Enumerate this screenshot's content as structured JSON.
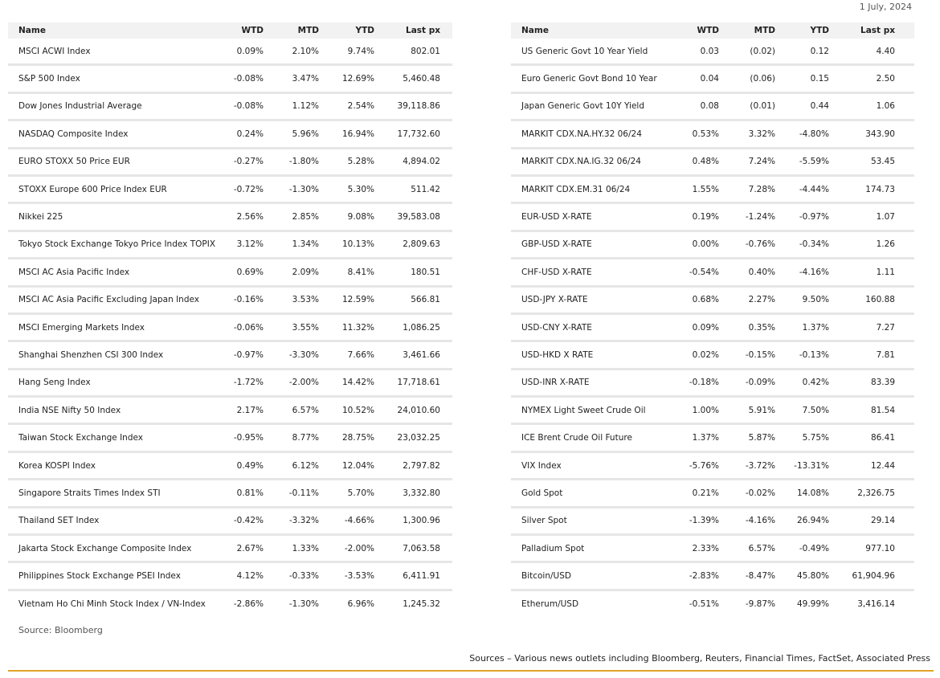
{
  "date": "1 July, 2024",
  "tables": [
    {
      "columns": [
        "Name",
        "WTD",
        "MTD",
        "YTD",
        "Last px"
      ],
      "rows": [
        [
          "MSCI ACWI Index",
          "0.09%",
          "2.10%",
          "9.74%",
          "802.01"
        ],
        [
          "S&P 500 Index",
          "-0.08%",
          "3.47%",
          "12.69%",
          "5,460.48"
        ],
        [
          "Dow Jones Industrial Average",
          "-0.08%",
          "1.12%",
          "2.54%",
          "39,118.86"
        ],
        [
          "NASDAQ Composite Index",
          "0.24%",
          "5.96%",
          "16.94%",
          "17,732.60"
        ],
        [
          "EURO STOXX 50 Price EUR",
          "-0.27%",
          "-1.80%",
          "5.28%",
          "4,894.02"
        ],
        [
          "STOXX Europe 600 Price Index EUR",
          "-0.72%",
          "-1.30%",
          "5.30%",
          "511.42"
        ],
        [
          "Nikkei 225",
          "2.56%",
          "2.85%",
          "9.08%",
          "39,583.08"
        ],
        [
          "Tokyo Stock Exchange Tokyo Price Index TOPIX",
          "3.12%",
          "1.34%",
          "10.13%",
          "2,809.63"
        ],
        [
          "MSCI AC Asia Pacific Index",
          "0.69%",
          "2.09%",
          "8.41%",
          "180.51"
        ],
        [
          "MSCI AC Asia Pacific Excluding Japan Index",
          "-0.16%",
          "3.53%",
          "12.59%",
          "566.81"
        ],
        [
          "MSCI Emerging Markets Index",
          "-0.06%",
          "3.55%",
          "11.32%",
          "1,086.25"
        ],
        [
          "Shanghai Shenzhen CSI 300 Index",
          "-0.97%",
          "-3.30%",
          "7.66%",
          "3,461.66"
        ],
        [
          "Hang Seng Index",
          "-1.72%",
          "-2.00%",
          "14.42%",
          "17,718.61"
        ],
        [
          "India NSE Nifty 50 Index",
          "2.17%",
          "6.57%",
          "10.52%",
          "24,010.60"
        ],
        [
          "Taiwan Stock Exchange Index",
          "-0.95%",
          "8.77%",
          "28.75%",
          "23,032.25"
        ],
        [
          "Korea KOSPI Index",
          "0.49%",
          "6.12%",
          "12.04%",
          "2,797.82"
        ],
        [
          "Singapore Straits Times Index STI",
          "0.81%",
          "-0.11%",
          "5.70%",
          "3,332.80"
        ],
        [
          "Thailand SET Index",
          "-0.42%",
          "-3.32%",
          "-4.66%",
          "1,300.96"
        ],
        [
          "Jakarta Stock Exchange Composite Index",
          "2.67%",
          "1.33%",
          "-2.00%",
          "7,063.58"
        ],
        [
          "Philippines Stock Exchange PSEI Index",
          "4.12%",
          "-0.33%",
          "-3.53%",
          "6,411.91"
        ],
        [
          "Vietnam Ho Chi Minh Stock Index / VN-Index",
          "-2.86%",
          "-1.30%",
          "6.96%",
          "1,245.32"
        ]
      ]
    },
    {
      "columns": [
        "Name",
        "WTD",
        "MTD",
        "YTD",
        "Last px"
      ],
      "rows": [
        [
          "US Generic Govt 10 Year Yield",
          "0.03",
          "(0.02)",
          "0.12",
          "4.40"
        ],
        [
          "Euro Generic Govt Bond 10 Year",
          "0.04",
          "(0.06)",
          "0.15",
          "2.50"
        ],
        [
          "Japan Generic Govt 10Y Yield",
          "0.08",
          "(0.01)",
          "0.44",
          "1.06"
        ],
        [
          "MARKIT CDX.NA.HY.32 06/24",
          "0.53%",
          "3.32%",
          "-4.80%",
          "343.90"
        ],
        [
          "MARKIT CDX.NA.IG.32 06/24",
          "0.48%",
          "7.24%",
          "-5.59%",
          "53.45"
        ],
        [
          "MARKIT CDX.EM.31 06/24",
          "1.55%",
          "7.28%",
          "-4.44%",
          "174.73"
        ],
        [
          "EUR-USD X-RATE",
          "0.19%",
          "-1.24%",
          "-0.97%",
          "1.07"
        ],
        [
          "GBP-USD X-RATE",
          "0.00%",
          "-0.76%",
          "-0.34%",
          "1.26"
        ],
        [
          "CHF-USD X-RATE",
          "-0.54%",
          "0.40%",
          "-4.16%",
          "1.11"
        ],
        [
          "USD-JPY X-RATE",
          "0.68%",
          "2.27%",
          "9.50%",
          "160.88"
        ],
        [
          "USD-CNY X-RATE",
          "0.09%",
          "0.35%",
          "1.37%",
          "7.27"
        ],
        [
          "USD-HKD X RATE",
          "0.02%",
          "-0.15%",
          "-0.13%",
          "7.81"
        ],
        [
          "USD-INR X-RATE",
          "-0.18%",
          "-0.09%",
          "0.42%",
          "83.39"
        ],
        [
          "NYMEX Light Sweet Crude Oil",
          "1.00%",
          "5.91%",
          "7.50%",
          "81.54"
        ],
        [
          "ICE Brent Crude Oil Future",
          "1.37%",
          "5.87%",
          "5.75%",
          "86.41"
        ],
        [
          "VIX Index",
          "-5.76%",
          "-3.72%",
          "-13.31%",
          "12.44"
        ],
        [
          "Gold Spot",
          "0.21%",
          "-0.02%",
          "14.08%",
          "2,326.75"
        ],
        [
          "Silver Spot",
          "-1.39%",
          "-4.16%",
          "26.94%",
          "29.14"
        ],
        [
          "Palladium Spot",
          "2.33%",
          "6.57%",
          "-0.49%",
          "977.10"
        ],
        [
          "Bitcoin/USD",
          "-2.83%",
          "-8.47%",
          "45.80%",
          "61,904.96"
        ],
        [
          "Etherum/USD",
          "-0.51%",
          "-9.87%",
          "49.99%",
          "3,416.14"
        ]
      ]
    }
  ],
  "source_note": "Source: Bloomberg",
  "footer": "Sources – Various news outlets including Bloomberg, Reuters, Financial Times, FactSet, Associated Press"
}
